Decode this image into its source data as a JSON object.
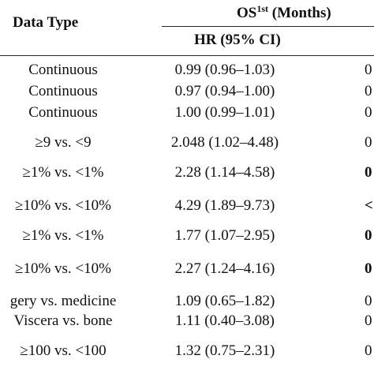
{
  "header": {
    "data_type": "Data Type",
    "os": "OS",
    "os_sup": "1st",
    "os_unit": " (Months)",
    "hr_col": "HR (95% CI)"
  },
  "rows": [
    {
      "type": "Continuous",
      "hr": "0.99 (0.96–1.03)",
      "p": "0",
      "p_bold": false
    },
    {
      "type": "Continuous",
      "hr": "0.97 (0.94–1.00)",
      "p": "0",
      "p_bold": false
    },
    {
      "type": "Continuous",
      "hr": "1.00 (0.99–1.01)",
      "p": "0",
      "p_bold": false
    },
    {
      "type": "≥9 vs. <9",
      "hr": "2.048 (1.02–4.48)",
      "p": "0",
      "p_bold": false
    },
    {
      "type": "≥1% vs. <1%",
      "hr": "2.28 (1.14–4.58)",
      "p": "0",
      "p_bold": true
    },
    {
      "type": "≥10% vs. <10%",
      "hr": "4.29 (1.89–9.73)",
      "p": "<",
      "p_bold": true
    },
    {
      "type": "≥1% vs. <1%",
      "hr": "1.77 (1.07–2.95)",
      "p": "0",
      "p_bold": true
    },
    {
      "type": "≥10% vs. <10%",
      "hr": "2.27 (1.24–4.16)",
      "p": "0",
      "p_bold": true
    },
    {
      "type": "gery vs. medicine",
      "hr": "1.09 (0.65–1.82)",
      "p": "0",
      "p_bold": false
    },
    {
      "type": "Viscera vs. bone",
      "hr": "1.11 (0.40–3.08)",
      "p": "0",
      "p_bold": false
    },
    {
      "type": "≥100 vs. <100",
      "hr": "1.32 (0.75–2.31)",
      "p": "0",
      "p_bold": false
    }
  ]
}
